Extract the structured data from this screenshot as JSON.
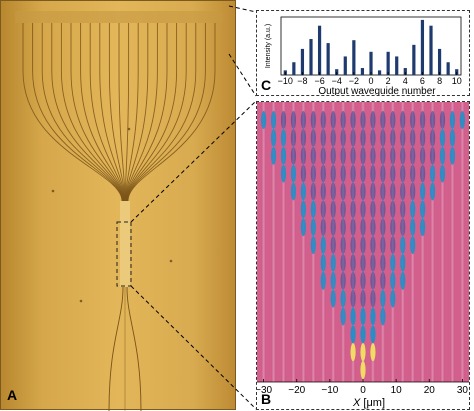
{
  "panels": {
    "a": {
      "letter": "A",
      "num_waveguides": 21
    },
    "b": {
      "letter": "B",
      "xlabel_var": "X",
      "xlabel_unit": " [μm]"
    },
    "c": {
      "letter": "C"
    }
  },
  "chart_data": [
    {
      "type": "bar",
      "panel": "C",
      "xlabel": "Output waveguide number",
      "ylabel": "Intensity (a.u.)",
      "xlim": [
        -10.5,
        10.5
      ],
      "xticks": [
        -10,
        -8,
        -6,
        -4,
        -2,
        0,
        2,
        4,
        6,
        8,
        10
      ],
      "ylim": [
        0,
        1
      ],
      "color": "#1f3a6e",
      "x": [
        -10,
        -9,
        -8,
        -7,
        -6,
        -5,
        -4,
        -3,
        -2,
        -1,
        0,
        1,
        2,
        3,
        4,
        5,
        6,
        7,
        8,
        9,
        10
      ],
      "values": [
        0.08,
        0.22,
        0.45,
        0.62,
        0.85,
        0.55,
        0.1,
        0.32,
        0.6,
        0.12,
        0.4,
        0.08,
        0.4,
        0.32,
        0.12,
        0.52,
        0.95,
        0.85,
        0.45,
        0.22,
        0.1
      ]
    },
    {
      "type": "heatmap",
      "panel": "B",
      "xlabel": "X [μm]",
      "xlim": [
        -32,
        32
      ],
      "xticks": [
        -30,
        -20,
        -10,
        0,
        10,
        20,
        30
      ],
      "num_waveguides": 21,
      "colors": {
        "background": "#d35f8d",
        "low": "#244d9c",
        "mid": "#1f8fc8",
        "high": "#f0e060"
      }
    }
  ]
}
